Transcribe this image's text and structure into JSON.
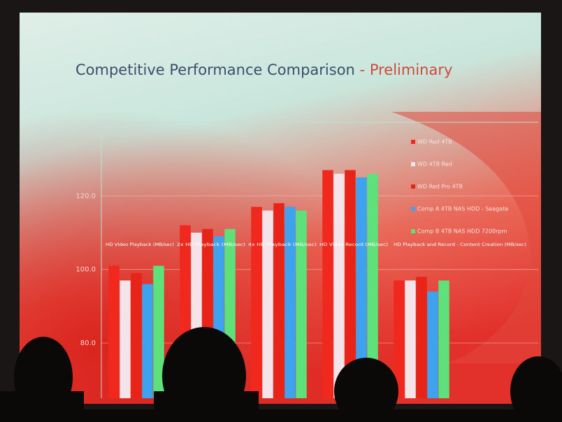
{
  "chart_data": {
    "type": "bar",
    "title": "Competitive Performance Comparison",
    "title_suffix": "- Preliminary",
    "categories": [
      "HD Video Playback (MB/sec)",
      "2x HD Playback (MB/sec)",
      "4x HD Playback (MB/sec)",
      "HD Video Record (MB/sec)",
      "HD Playback and Record - Content Creation (MB/sec)"
    ],
    "series": [
      {
        "name": "WD Red 4TB",
        "color": "#f0281e",
        "values": [
          101,
          112,
          117,
          127,
          97
        ]
      },
      {
        "name": "WD 4TB Red",
        "color": "#f4e4ea",
        "values": [
          97,
          110,
          116,
          126,
          97
        ]
      },
      {
        "name": "WD Red Pro 4TB",
        "color": "#e82418",
        "values": [
          99,
          111,
          118,
          127,
          98
        ]
      },
      {
        "name": "Comp A 4TB NAS HDD - Seagate",
        "color": "#3ea2ee",
        "values": [
          96,
          109,
          117,
          125,
          94
        ]
      },
      {
        "name": "Comp B 4TB NAS HDD 7200rpm",
        "color": "#5ee07a",
        "values": [
          101,
          111,
          116,
          126,
          97
        ]
      }
    ],
    "ylim": [
      65,
      140
    ],
    "yticks": [
      {
        "value": 80,
        "label": "80.0"
      },
      {
        "value": 100,
        "label": "100.0"
      },
      {
        "value": 120,
        "label": "120.0"
      }
    ],
    "grid": true
  }
}
